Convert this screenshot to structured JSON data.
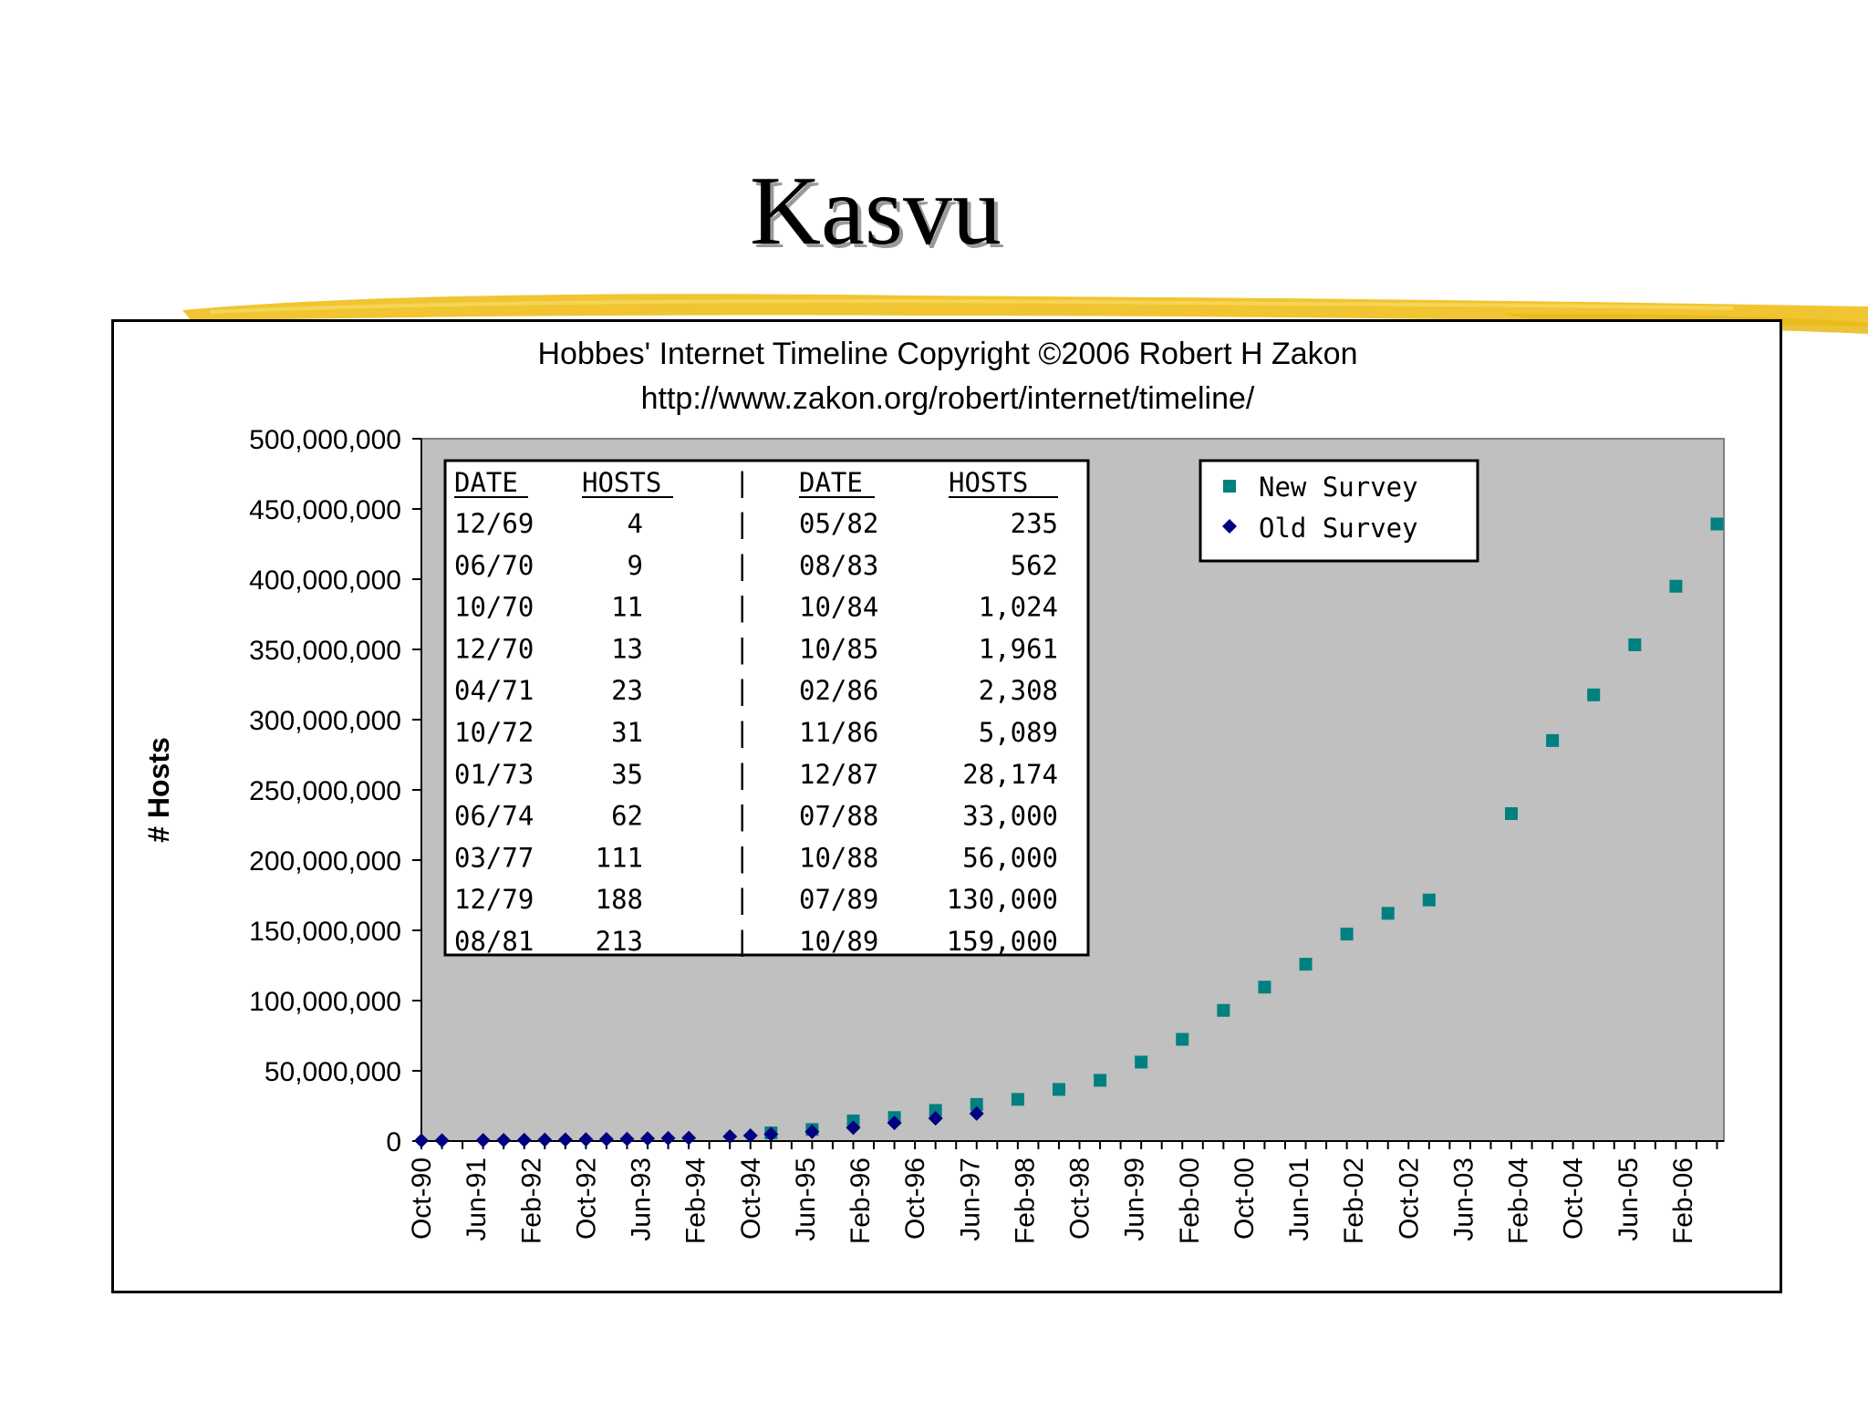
{
  "slide": {
    "title": "Kasvu"
  },
  "colors": {
    "plot_bg": "#c0c0c0",
    "new_survey": "#008080",
    "old_survey": "#000080",
    "stroke": "#f0c020"
  },
  "chart_data": {
    "type": "scatter",
    "title": "Hobbes' Internet Timeline Copyright ©2006 Robert H Zakon",
    "subtitle": "http://www.zakon.org/robert/internet/timeline/",
    "ylabel": "# Hosts",
    "xlabel": "",
    "ylim": [
      0,
      500000000
    ],
    "yticks": [
      "500,000,000",
      "450,000,000",
      "400,000,000",
      "350,000,000",
      "300,000,000",
      "250,000,000",
      "200,000,000",
      "150,000,000",
      "100,000,000",
      "50,000,000",
      "0"
    ],
    "xticks": [
      "Oct-90",
      "Jun-91",
      "Feb-92",
      "Oct-92",
      "Jun-93",
      "Feb-94",
      "Oct-94",
      "Jun-95",
      "Feb-96",
      "Oct-96",
      "Jun-97",
      "Feb-98",
      "Oct-98",
      "Jun-99",
      "Feb-00",
      "Oct-00",
      "Jun-01",
      "Feb-02",
      "Oct-02",
      "Jun-03",
      "Feb-04",
      "Oct-04",
      "Jun-05",
      "Feb-06"
    ],
    "grid": false,
    "legend_position": "top-right",
    "series": [
      {
        "name": "New Survey",
        "marker": "square",
        "x": [
          "Jan-95",
          "Jul-95",
          "Jan-96",
          "Jul-96",
          "Jan-97",
          "Jul-97",
          "Jan-98",
          "Jul-98",
          "Jan-99",
          "Jul-99",
          "Jan-00",
          "Jul-00",
          "Jan-01",
          "Jul-01",
          "Jan-02",
          "Jul-02",
          "Jan-03",
          "Jan-04",
          "Jul-04",
          "Jan-05",
          "Jul-05",
          "Jan-06",
          "Jul-06"
        ],
        "y": [
          5846000,
          8200000,
          14352000,
          16729000,
          21819000,
          26053000,
          29670000,
          36739000,
          43230000,
          56218000,
          72398092,
          93047785,
          109574429,
          125888197,
          147344723,
          162128493,
          171638297,
          233101481,
          285139107,
          317646084,
          353284187,
          394991609,
          439286364
        ]
      },
      {
        "name": "Old Survey",
        "marker": "diamond",
        "x": [
          "Oct-90",
          "Jan-91",
          "Jul-91",
          "Oct-91",
          "Jan-92",
          "Apr-92",
          "Jul-92",
          "Oct-92",
          "Jan-93",
          "Apr-93",
          "Jul-93",
          "Oct-93",
          "Jan-94",
          "Jul-94",
          "Oct-94",
          "Jan-95",
          "Jul-95",
          "Jan-96",
          "Jul-96",
          "Jan-97",
          "Jul-97"
        ],
        "y": [
          313000,
          376000,
          535000,
          617000,
          727000,
          890000,
          992000,
          1136000,
          1313000,
          1486000,
          1776000,
          2056000,
          2217000,
          3212000,
          3864000,
          4852000,
          6642000,
          9472000,
          12881000,
          16146000,
          19540000
        ]
      }
    ],
    "table": {
      "headers": [
        "DATE",
        "HOSTS",
        "|",
        "DATE",
        "HOSTS"
      ],
      "rows": [
        [
          "12/69",
          "4",
          "|",
          "05/82",
          "235"
        ],
        [
          "06/70",
          "9",
          "|",
          "08/83",
          "562"
        ],
        [
          "10/70",
          "11",
          "|",
          "10/84",
          "1,024"
        ],
        [
          "12/70",
          "13",
          "|",
          "10/85",
          "1,961"
        ],
        [
          "04/71",
          "23",
          "|",
          "02/86",
          "2,308"
        ],
        [
          "10/72",
          "31",
          "|",
          "11/86",
          "5,089"
        ],
        [
          "01/73",
          "35",
          "|",
          "12/87",
          "28,174"
        ],
        [
          "06/74",
          "62",
          "|",
          "07/88",
          "33,000"
        ],
        [
          "03/77",
          "111",
          "|",
          "10/88",
          "56,000"
        ],
        [
          "12/79",
          "188",
          "|",
          "07/89",
          "130,000"
        ],
        [
          "08/81",
          "213",
          "|",
          "10/89",
          "159,000"
        ]
      ]
    }
  }
}
